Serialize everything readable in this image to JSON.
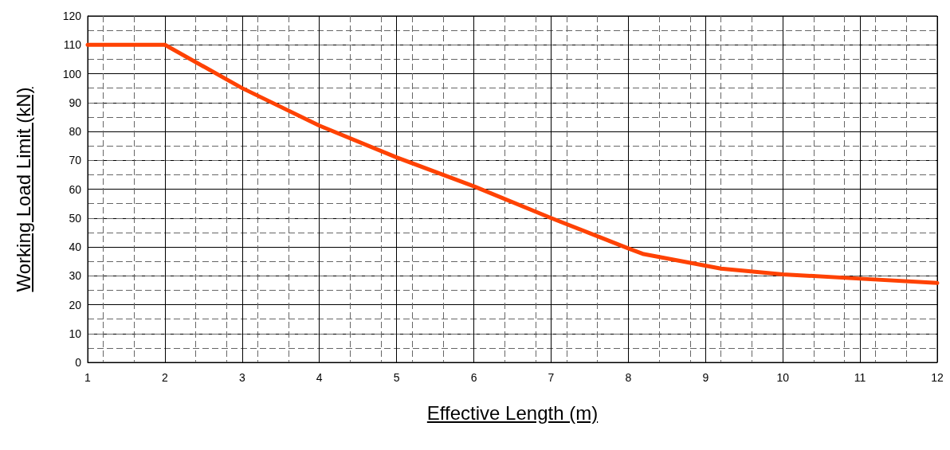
{
  "chart_data": {
    "type": "line",
    "xlabel": "Effective Length (m)",
    "ylabel": "Working Load Limit (kN)",
    "x": [
      1,
      2,
      3,
      4,
      5,
      6,
      7,
      8,
      8.2,
      9.2,
      10,
      11,
      12
    ],
    "series": [
      {
        "color": "#ff4203",
        "values": [
          110,
          110,
          95,
          82,
          71,
          61,
          50,
          39.5,
          37.5,
          32.5,
          30.5,
          29,
          27.5
        ]
      }
    ],
    "xlim": [
      1,
      12
    ],
    "xticks": [
      1,
      2,
      3,
      4,
      5,
      6,
      7,
      8,
      9,
      10,
      11,
      12
    ],
    "ylim": [
      0,
      120
    ],
    "yticks": [
      0,
      10,
      20,
      30,
      40,
      50,
      60,
      70,
      80,
      90,
      100,
      110,
      120
    ],
    "grid": true,
    "marker": "none",
    "line_style": "solid"
  }
}
